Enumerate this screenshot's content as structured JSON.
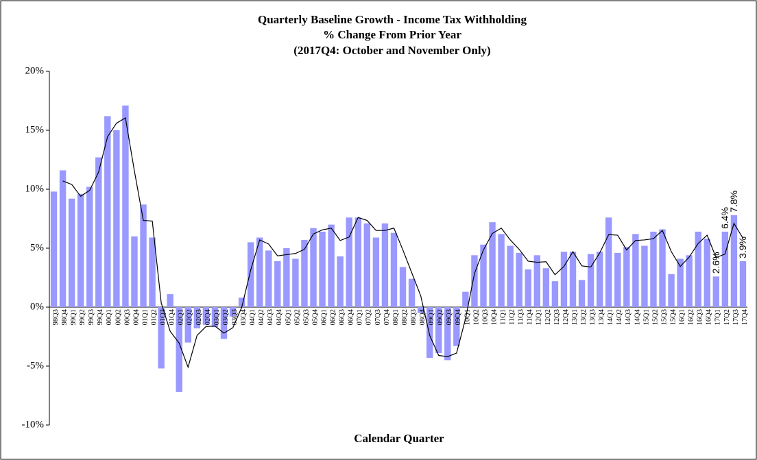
{
  "chart_data": {
    "type": "bar",
    "title": "Quarterly Baseline Growth - Income Tax Withholding",
    "subtitle": "% Change From Prior Year",
    "note": "(2017Q4: October and November Only)",
    "x_label": "Calendar Quarter",
    "categories": [
      "98Q3",
      "98Q4",
      "99Q1",
      "99Q2",
      "99Q3",
      "99Q4",
      "00Q1",
      "00Q2",
      "00Q3",
      "00Q4",
      "01Q1",
      "01Q2",
      "01Q3",
      "01Q4",
      "02Q1",
      "02Q2",
      "02Q3",
      "02Q4",
      "03Q1",
      "03Q2",
      "03Q3",
      "03Q4",
      "04Q1",
      "04Q2",
      "04Q3",
      "04Q4",
      "05Q1",
      "05Q2",
      "05Q3",
      "05Q4",
      "06Q1",
      "06Q2",
      "06Q3",
      "06Q4",
      "07Q1",
      "07Q2",
      "07Q3",
      "07Q4",
      "08Q1",
      "08Q2",
      "08Q3",
      "08Q4",
      "09Q1",
      "09Q2",
      "09Q3",
      "09Q4",
      "10Q1",
      "10Q2",
      "10Q3",
      "10Q4",
      "11Q1",
      "11Q2",
      "11Q3",
      "11Q4",
      "12Q1",
      "12Q2",
      "12Q3",
      "12Q4",
      "13Q1",
      "13Q2",
      "13Q3",
      "13Q4",
      "14Q1",
      "14Q2",
      "14Q3",
      "14Q4",
      "15Q1",
      "15Q2",
      "15Q3",
      "15Q4",
      "16Q1",
      "16Q2",
      "16Q3",
      "16Q4",
      "17Q1",
      "17Q2",
      "17Q3",
      "17Q4"
    ],
    "series": [
      {
        "type": "bar",
        "color": "#9999ff",
        "values": [
          9.8,
          11.6,
          9.2,
          9.6,
          10.2,
          12.7,
          16.2,
          15.0,
          17.1,
          6.0,
          8.7,
          5.9,
          -5.2,
          1.1,
          -7.2,
          -3.0,
          -1.8,
          -1.5,
          -1.7,
          -2.7,
          -0.8,
          0.8,
          5.5,
          5.9,
          4.8,
          3.9,
          5.0,
          4.1,
          5.7,
          6.7,
          6.4,
          7.0,
          4.3,
          7.6,
          7.6,
          7.1,
          5.9,
          7.1,
          6.3,
          3.4,
          2.4,
          -0.5,
          -4.3,
          -3.9,
          -4.5,
          -3.3,
          1.3,
          4.4,
          5.3,
          7.2,
          6.2,
          5.2,
          4.6,
          3.2,
          4.4,
          3.3,
          2.2,
          4.7,
          4.7,
          2.3,
          4.5,
          4.7,
          7.6,
          4.6,
          5.1,
          6.2,
          5.2,
          6.4,
          6.6,
          2.8,
          4.1,
          4.4,
          6.4,
          5.8,
          2.6,
          6.4,
          7.8,
          3.9
        ],
        "value_labels": [
          null,
          null,
          null,
          null,
          null,
          null,
          null,
          null,
          null,
          null,
          null,
          null,
          null,
          null,
          null,
          null,
          null,
          null,
          null,
          null,
          null,
          null,
          null,
          null,
          null,
          null,
          null,
          null,
          null,
          null,
          null,
          null,
          null,
          null,
          null,
          null,
          null,
          null,
          null,
          null,
          null,
          null,
          null,
          null,
          null,
          null,
          null,
          null,
          null,
          null,
          null,
          null,
          null,
          null,
          null,
          null,
          null,
          null,
          null,
          null,
          null,
          null,
          null,
          null,
          null,
          null,
          null,
          null,
          null,
          null,
          null,
          null,
          null,
          null,
          "2.6%",
          "6.4%",
          "7.8%",
          "3.9%"
        ]
      },
      {
        "type": "line",
        "color": "#000000",
        "values": [
          null,
          10.7,
          10.4,
          9.4,
          9.9,
          11.45,
          14.45,
          15.6,
          16.05,
          11.55,
          7.35,
          7.3,
          0.35,
          -2.05,
          -3.05,
          -5.1,
          -2.4,
          -1.65,
          -1.6,
          -2.2,
          -1.75,
          0,
          3.15,
          5.7,
          5.35,
          4.35,
          4.45,
          4.55,
          4.9,
          6.2,
          6.55,
          6.7,
          5.65,
          5.95,
          7.6,
          7.35,
          6.5,
          6.5,
          6.7,
          4.85,
          2.9,
          0.95,
          -2.4,
          -4.1,
          -4.2,
          -3.9,
          -1.0,
          2.85,
          4.85,
          6.25,
          6.7,
          5.7,
          4.9,
          3.9,
          3.8,
          3.85,
          2.75,
          3.45,
          4.7,
          3.5,
          3.4,
          4.6,
          6.15,
          6.1,
          4.85,
          5.65,
          5.7,
          5.8,
          6.5,
          4.7,
          3.45,
          4.25,
          5.4,
          6.1,
          4.2,
          4.5,
          7.1,
          5.85
        ]
      }
    ],
    "ylim": [
      -10,
      20
    ],
    "yticks": [
      {
        "value": -10,
        "label": "-10%"
      },
      {
        "value": -5,
        "label": "-5%"
      },
      {
        "value": 0,
        "label": "0%"
      },
      {
        "value": 5,
        "label": "5%"
      },
      {
        "value": 10,
        "label": "10%"
      },
      {
        "value": 15,
        "label": "15%"
      },
      {
        "value": 20,
        "label": "20%"
      }
    ],
    "grid": false
  }
}
